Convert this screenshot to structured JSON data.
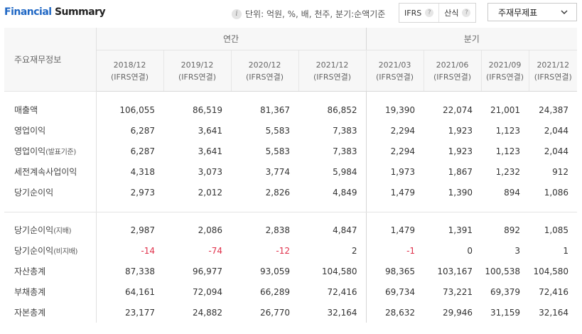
{
  "header": {
    "title_part1": "Financial",
    "title_part2": "Summary",
    "unit_note": "단위: 억원, %, 배, 천주, 분기:순액기준",
    "buttons": {
      "ifrs": "IFRS",
      "sansik": "산식"
    },
    "select_value": "주재무제표"
  },
  "table": {
    "corner_label": "주요재무정보",
    "group_annual": "연간",
    "group_quarterly": "분기",
    "columns": [
      {
        "period": "2018/12",
        "basis": "(IFRS연결)"
      },
      {
        "period": "2019/12",
        "basis": "(IFRS연결)"
      },
      {
        "period": "2020/12",
        "basis": "(IFRS연결)"
      },
      {
        "period": "2021/12",
        "basis": "(IFRS연결)"
      },
      {
        "period": "2021/03",
        "basis": "(IFRS연결)"
      },
      {
        "period": "2021/06",
        "basis": "(IFRS연결)"
      },
      {
        "period": "2021/09",
        "basis": "(IFRS연결)"
      },
      {
        "period": "2021/12",
        "basis": "(IFRS연결)"
      }
    ],
    "rows": [
      {
        "label": "매출액",
        "sub": "",
        "values": [
          "106,055",
          "86,519",
          "81,367",
          "86,852",
          "19,390",
          "22,074",
          "21,001",
          "24,387"
        ]
      },
      {
        "label": "영업이익",
        "sub": "",
        "values": [
          "6,287",
          "3,641",
          "5,583",
          "7,383",
          "2,294",
          "1,923",
          "1,123",
          "2,044"
        ]
      },
      {
        "label": "영업이익",
        "sub": "(발표기준)",
        "values": [
          "6,287",
          "3,641",
          "5,583",
          "7,383",
          "2,294",
          "1,923",
          "1,123",
          "2,044"
        ]
      },
      {
        "label": "세전계속사업이익",
        "sub": "",
        "values": [
          "4,318",
          "3,073",
          "3,774",
          "5,984",
          "1,973",
          "1,867",
          "1,232",
          "912"
        ]
      },
      {
        "label": "당기순이익",
        "sub": "",
        "values": [
          "2,973",
          "2,012",
          "2,826",
          "4,849",
          "1,479",
          "1,390",
          "894",
          "1,086"
        ]
      },
      {
        "label": "당기순이익",
        "sub": "(지배)",
        "values": [
          "2,987",
          "2,086",
          "2,838",
          "4,847",
          "1,479",
          "1,391",
          "892",
          "1,085"
        ]
      },
      {
        "label": "당기순이익",
        "sub": "(비지배)",
        "values": [
          "-14",
          "-74",
          "-12",
          "2",
          "-1",
          "0",
          "3",
          "1"
        ]
      },
      {
        "label": "자산총계",
        "sub": "",
        "values": [
          "87,338",
          "96,977",
          "93,059",
          "104,580",
          "98,365",
          "103,167",
          "100,538",
          "104,580"
        ]
      },
      {
        "label": "부채총계",
        "sub": "",
        "values": [
          "64,161",
          "72,094",
          "66,289",
          "72,416",
          "69,734",
          "73,221",
          "69,379",
          "72,416"
        ]
      },
      {
        "label": "자본총계",
        "sub": "",
        "values": [
          "23,177",
          "24,882",
          "26,770",
          "32,164",
          "28,632",
          "29,946",
          "31,159",
          "32,164"
        ]
      }
    ]
  },
  "colors": {
    "title_accent": "#1f67c4",
    "negative": "#e0314b"
  },
  "icons": {
    "info": "info-icon",
    "help": "question-icon",
    "dropdown": "chevron-down-icon"
  }
}
